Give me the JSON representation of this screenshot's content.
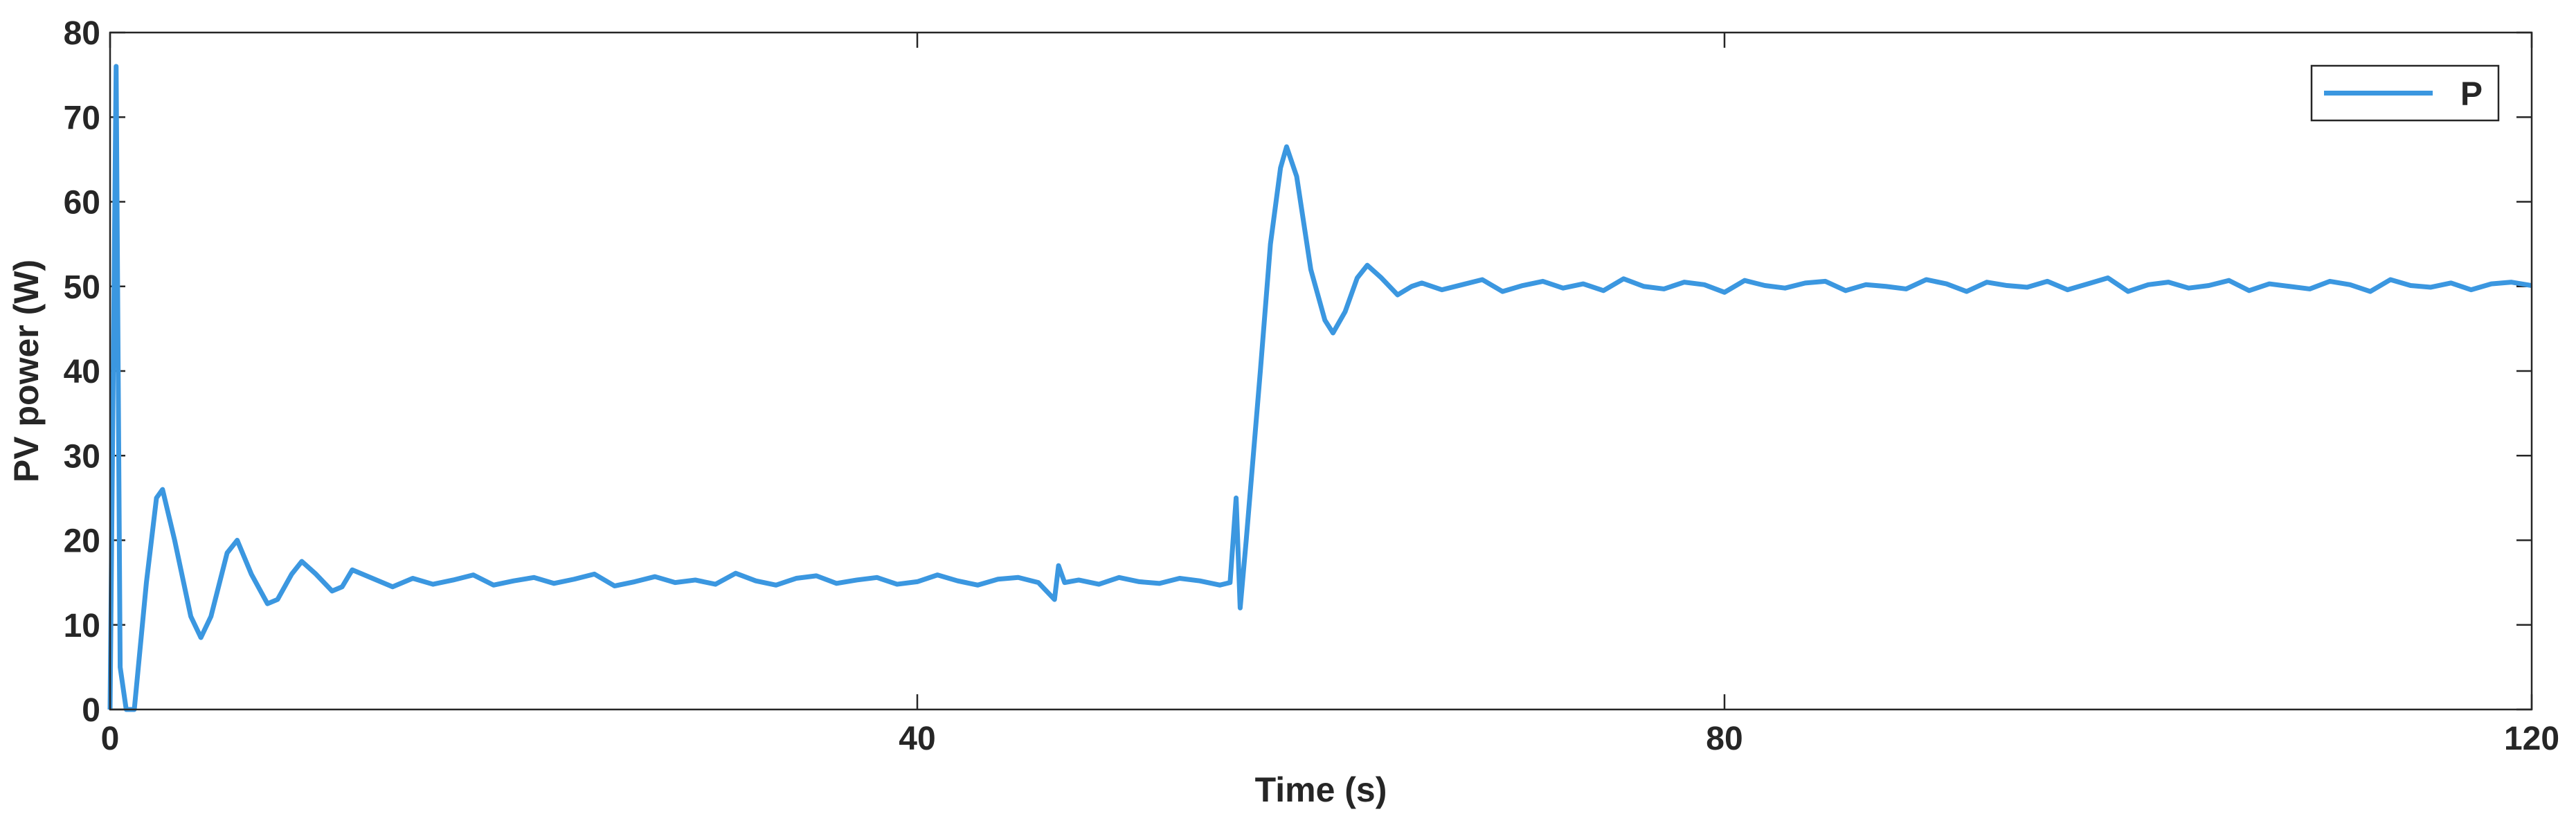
{
  "chart_data": {
    "type": "line",
    "xlabel": "Time (s)",
    "ylabel": "PV power (W)",
    "xlim": [
      0,
      120
    ],
    "ylim": [
      0,
      80
    ],
    "xticks": [
      0,
      40,
      80,
      120
    ],
    "yticks": [
      0,
      10,
      20,
      30,
      40,
      50,
      60,
      70,
      80
    ],
    "legend": "northeast",
    "grid": false,
    "x": [
      0,
      0.3,
      0.5,
      0.8,
      1.2,
      1.8,
      2.3,
      2.6,
      3.2,
      4.0,
      4.5,
      5.0,
      5.8,
      6.3,
      7.0,
      7.8,
      8.3,
      9.0,
      9.5,
      10.2,
      11.0,
      11.5,
      12.0,
      13.0,
      14.0,
      15,
      16,
      17,
      18,
      19,
      20,
      21,
      22,
      23,
      24,
      25,
      26,
      27,
      28,
      29,
      30,
      31,
      32,
      33,
      34,
      35,
      36,
      37,
      38,
      39,
      40,
      41,
      42,
      43,
      44,
      45,
      46,
      46.8,
      47,
      47.3,
      48,
      49,
      50,
      51,
      52,
      53,
      54,
      55,
      55.5,
      55.8,
      56,
      56.3,
      57,
      57.5,
      58,
      58.3,
      58.8,
      59.5,
      60.2,
      60.6,
      61.2,
      61.8,
      62.3,
      63,
      63.8,
      64.5,
      65,
      66,
      67,
      68,
      69,
      70,
      71,
      72,
      73,
      74,
      75,
      76,
      77,
      78,
      79,
      80,
      81,
      82,
      83,
      84,
      85,
      86,
      87,
      88,
      89,
      90,
      91,
      92,
      93,
      94,
      95,
      96,
      97,
      98,
      99,
      100,
      101,
      102,
      103,
      104,
      105,
      106,
      107,
      108,
      109,
      110,
      111,
      112,
      113,
      114,
      115,
      116,
      117,
      118,
      119,
      120
    ],
    "series": [
      {
        "name": "P",
        "color": "#3b97e0",
        "values": [
          0,
          76,
          5,
          0,
          0,
          15,
          25,
          26,
          20,
          11,
          8.5,
          11,
          18.5,
          20,
          16,
          12.5,
          13,
          16,
          17.5,
          16,
          14,
          14.5,
          16.5,
          15.5,
          14.5,
          15.5,
          14.8,
          15.3,
          15.9,
          14.7,
          15.2,
          15.6,
          14.9,
          15.4,
          16,
          14.6,
          15.1,
          15.7,
          15,
          15.3,
          14.8,
          16.1,
          15.2,
          14.7,
          15.5,
          15.8,
          14.9,
          15.3,
          15.6,
          14.8,
          15.1,
          15.9,
          15.2,
          14.7,
          15.4,
          15.6,
          15,
          13,
          17,
          15,
          15.3,
          14.8,
          15.6,
          15.1,
          14.9,
          15.5,
          15.2,
          14.7,
          15,
          25,
          12,
          20,
          40,
          55,
          64,
          66.5,
          63,
          52,
          46,
          44.5,
          47,
          51,
          52.5,
          51,
          49,
          50,
          50.4,
          49.6,
          50.2,
          50.8,
          49.4,
          50.1,
          50.6,
          49.8,
          50.3,
          49.5,
          50.9,
          50,
          49.7,
          50.5,
          50.2,
          49.3,
          50.7,
          50.1,
          49.8,
          50.4,
          50.6,
          49.5,
          50.2,
          50,
          49.7,
          50.8,
          50.3,
          49.4,
          50.5,
          50.1,
          49.9,
          50.6,
          49.6,
          50.3,
          51,
          49.4,
          50.2,
          50.5,
          49.8,
          50.1,
          50.7,
          49.5,
          50.3,
          50,
          49.7,
          50.6,
          50.2,
          49.4,
          50.8,
          50.1,
          49.9,
          50.4,
          49.6,
          50.3,
          50.5,
          50.1
        ]
      }
    ]
  }
}
